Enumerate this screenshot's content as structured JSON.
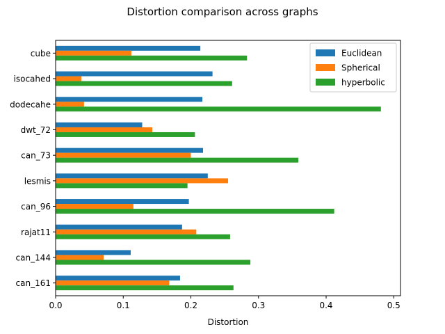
{
  "chart_data": {
    "type": "bar",
    "orientation": "horizontal",
    "title": "Distortion comparison across graphs",
    "xlabel": "Distortion",
    "ylabel": "",
    "xlim": [
      0,
      0.51
    ],
    "xticks": [
      0.0,
      0.1,
      0.2,
      0.3,
      0.4,
      0.5
    ],
    "xtick_labels": [
      "0.0",
      "0.1",
      "0.2",
      "0.3",
      "0.4",
      "0.5"
    ],
    "grid": false,
    "legend_position": "top-right",
    "categories": [
      "cube",
      "isocahed",
      "dodecahe",
      "dwt_72",
      "can_73",
      "lesmis",
      "can_96",
      "rajat11",
      "can_144",
      "can_161"
    ],
    "series": [
      {
        "name": "Euclidean",
        "color": "#1f77b4",
        "values": [
          0.214,
          0.232,
          0.217,
          0.128,
          0.218,
          0.225,
          0.197,
          0.187,
          0.111,
          0.184
        ]
      },
      {
        "name": "Spherical",
        "color": "#ff7f0e",
        "values": [
          0.112,
          0.038,
          0.042,
          0.143,
          0.2,
          0.255,
          0.115,
          0.208,
          0.071,
          0.168
        ]
      },
      {
        "name": "hyperbolic",
        "color": "#2ca02c",
        "values": [
          0.283,
          0.261,
          0.481,
          0.206,
          0.359,
          0.195,
          0.412,
          0.258,
          0.288,
          0.263
        ]
      }
    ]
  }
}
